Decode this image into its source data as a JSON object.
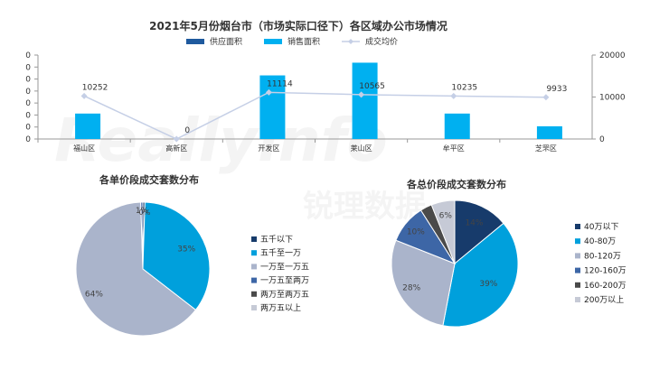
{
  "chart_data": [
    {
      "type": "bar",
      "title": "2021年5月份烟台市（市场实际口径下）各区域办公市场情况",
      "categories": [
        "福山区",
        "高新区",
        "开发区",
        "莱山区",
        "牟平区",
        "芝罘区"
      ],
      "series": [
        {
          "name": "供应面积",
          "values": [
            0,
            0,
            0,
            0,
            0,
            0
          ],
          "axis": "left",
          "color": "#1f5a9e"
        },
        {
          "name": "销售面积",
          "values": [
            1,
            0,
            2.5,
            3,
            1,
            0.5
          ],
          "axis": "left",
          "color": "#00b0f0"
        },
        {
          "name": "成交均价",
          "type": "line",
          "values": [
            10252,
            0,
            11114,
            10565,
            10235,
            9933
          ],
          "axis": "right",
          "color": "#c5cfe6",
          "labels": [
            "10252",
            "0",
            "11114",
            "10565",
            "10235",
            "9933"
          ]
        }
      ],
      "y_left_tick_labels": [
        "0",
        "0",
        "0",
        "0",
        "0",
        "0",
        "0",
        "0"
      ],
      "y_right": {
        "ylim": [
          0,
          20000
        ],
        "ticks": [
          0,
          10000,
          20000
        ],
        "tick_labels": [
          "0",
          "10000",
          "20000"
        ]
      },
      "legend_position": "top"
    },
    {
      "type": "pie",
      "title": "各单价段成交套数分布",
      "slices": [
        {
          "label": "五千以下",
          "value": 0.5,
          "text": "",
          "color": "#173b6b"
        },
        {
          "label": "五千至一万",
          "value": 35,
          "text": "35%",
          "color": "#00a0dc"
        },
        {
          "label": "一万至一万五",
          "value": 64,
          "text": "64%",
          "color": "#aab4cb"
        },
        {
          "label": "一万五至两万",
          "value": 0.5,
          "text": "1%",
          "color": "#3d66a6"
        },
        {
          "label": "两万至两万五",
          "value": 0,
          "text": "",
          "color": "#4a4a4a"
        },
        {
          "label": "两万五以上",
          "value": 0,
          "text": "",
          "color": "#c6cad6"
        }
      ],
      "extra_labels": [
        "0%"
      ],
      "legend_position": "right"
    },
    {
      "type": "pie",
      "title": "各总价段成交套数分布",
      "slices": [
        {
          "label": "40万以下",
          "value": 14,
          "text": "14%",
          "color": "#173b6b"
        },
        {
          "label": "40-80万",
          "value": 39,
          "text": "39%",
          "color": "#00a0dc"
        },
        {
          "label": "80-120万",
          "value": 28,
          "text": "28%",
          "color": "#aab4cb"
        },
        {
          "label": "120-160万",
          "value": 10,
          "text": "10%",
          "color": "#3d66a6"
        },
        {
          "label": "160-200万",
          "value": 3,
          "text": "",
          "color": "#4a4a4a"
        },
        {
          "label": "200万以上",
          "value": 6,
          "text": "6%",
          "color": "#c6cad6"
        }
      ],
      "legend_position": "right"
    }
  ],
  "watermark": "Reallyinfo 锐理数据"
}
